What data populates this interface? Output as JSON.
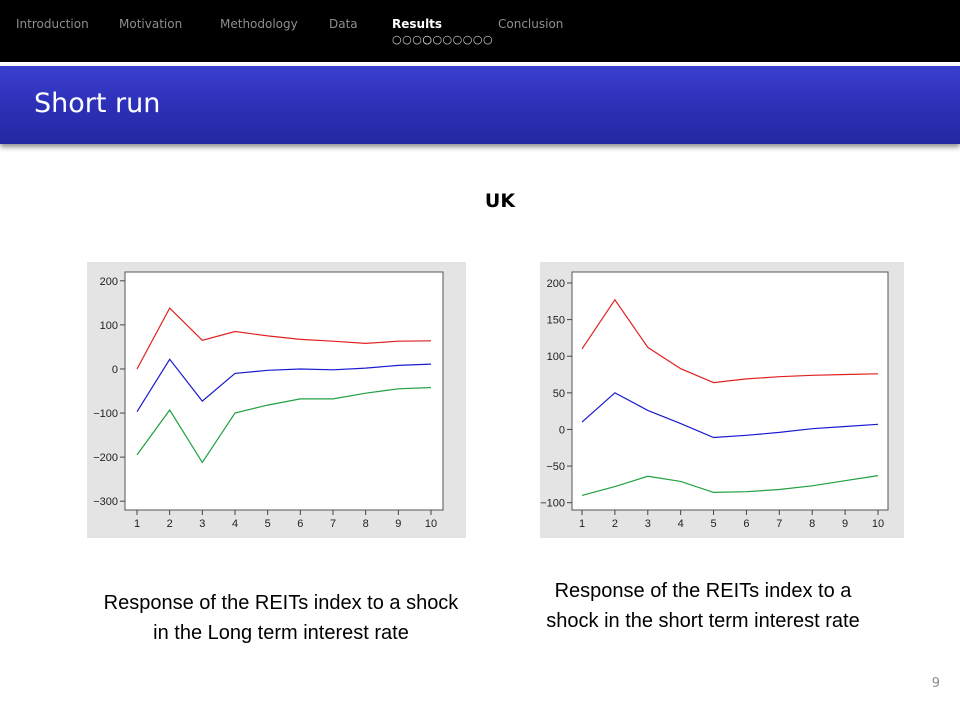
{
  "header": {
    "nav_sections": [
      {
        "label": "Introduction",
        "active": false
      },
      {
        "label": "Motivation",
        "active": false
      },
      {
        "label": "Methodology",
        "active": false
      },
      {
        "label": "Data",
        "active": false
      },
      {
        "label": "Results",
        "active": true
      },
      {
        "label": "Conclusion",
        "active": false
      }
    ],
    "progress": {
      "total": 10,
      "current": 4
    }
  },
  "slide": {
    "title": "Short run",
    "subtitle": "UK",
    "captions": {
      "left": "Response of the REITs index to a shock in the Long term interest rate",
      "right": "Response of  the REITs index to a shock in the short term interest rate"
    },
    "page_number": "9"
  },
  "colors": {
    "top_bar": "#000000",
    "title_bar": "#2b2fb5",
    "upper_band": "#e02020",
    "response": "#1a1ad0",
    "lower_band": "#20a040",
    "chart_background": "#e4e4e4"
  },
  "chart_data": [
    {
      "type": "line",
      "x": [
        1,
        2,
        3,
        4,
        5,
        6,
        7,
        8,
        9,
        10
      ],
      "ylim": [
        -320,
        220
      ],
      "yticks": [
        200,
        100,
        0,
        -100,
        -200,
        -300
      ],
      "grid": false,
      "series": [
        {
          "role": "upper",
          "values": [
            0,
            138,
            65,
            85,
            75,
            67,
            63,
            58,
            63,
            64
          ]
        },
        {
          "role": "response",
          "values": [
            -97,
            22,
            -73,
            -10,
            -3,
            0,
            -2,
            2,
            8,
            11
          ]
        },
        {
          "role": "lower",
          "values": [
            -195,
            -93,
            -212,
            -100,
            -82,
            -68,
            -68,
            -55,
            -45,
            -42
          ]
        }
      ]
    },
    {
      "type": "line",
      "x": [
        1,
        2,
        3,
        4,
        5,
        6,
        7,
        8,
        9,
        10
      ],
      "ylim": [
        -110,
        215
      ],
      "yticks": [
        200,
        150,
        100,
        50,
        0,
        -50,
        -100
      ],
      "grid": false,
      "series": [
        {
          "role": "upper",
          "values": [
            110,
            177,
            112,
            83,
            64,
            69,
            72,
            74,
            75,
            76
          ]
        },
        {
          "role": "response",
          "values": [
            10,
            50,
            26,
            8,
            -11,
            -8,
            -4,
            1,
            4,
            7
          ]
        },
        {
          "role": "lower",
          "values": [
            -90,
            -78,
            -64,
            -71,
            -86,
            -85,
            -82,
            -77,
            -70,
            -63
          ]
        }
      ]
    }
  ]
}
